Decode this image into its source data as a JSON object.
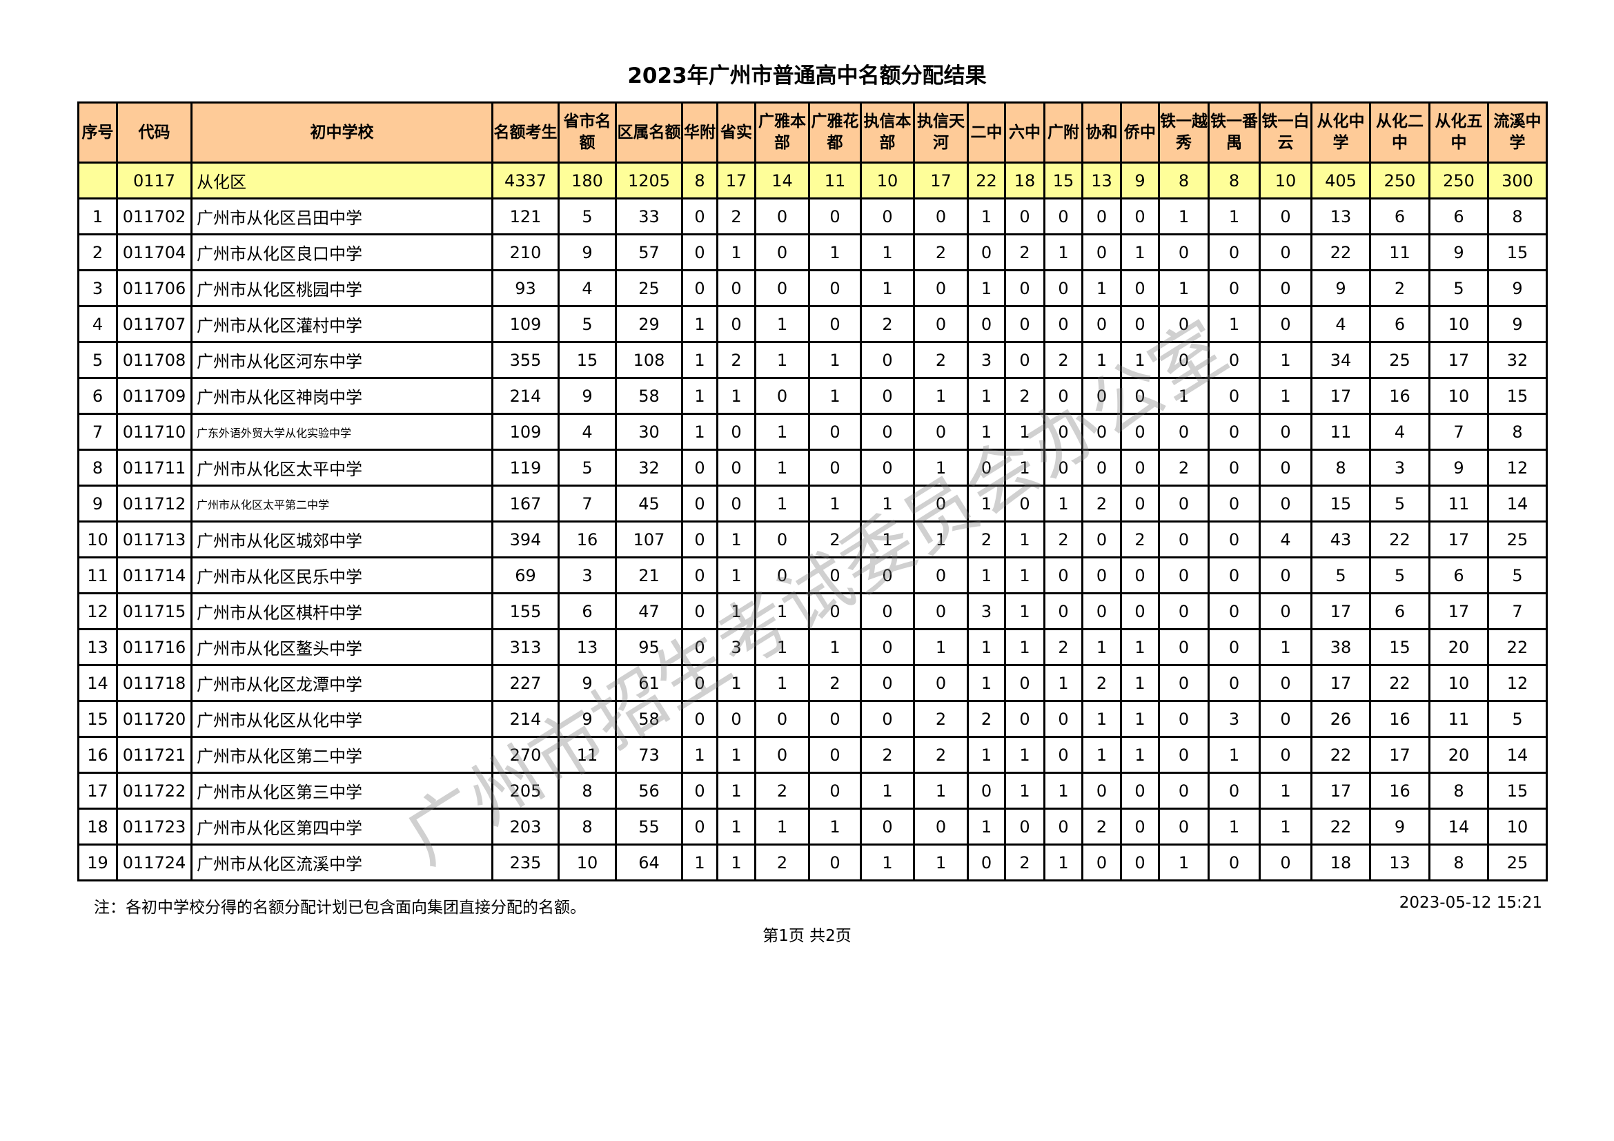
{
  "title": "2023年广州市普通高中名额分配结果",
  "columns": [
    "序号",
    "代码",
    "初中学校",
    "名额考生",
    "省市名额",
    "区属名额",
    "华附",
    "省实",
    "广雅本部",
    "广雅花都",
    "执信本部",
    "执信天河",
    "二中",
    "六中",
    "广附",
    "协和",
    "侨中",
    "铁一越秀",
    "铁一番禺",
    "铁一白云",
    "从化中学",
    "从化二中",
    "从化五中",
    "流溪中学"
  ],
  "region_row": [
    "",
    "0117",
    "从化区",
    "4337",
    "180",
    "1205",
    "8",
    "17",
    "14",
    "11",
    "10",
    "17",
    "22",
    "18",
    "15",
    "13",
    "9",
    "8",
    "8",
    "10",
    "405",
    "250",
    "250",
    "300"
  ],
  "rows": [
    [
      "1",
      "011702",
      "广州市从化区吕田中学",
      "121",
      "5",
      "33",
      "0",
      "2",
      "0",
      "0",
      "0",
      "0",
      "1",
      "0",
      "0",
      "0",
      "0",
      "1",
      "1",
      "0",
      "13",
      "6",
      "6",
      "8"
    ],
    [
      "2",
      "011704",
      "广州市从化区良口中学",
      "210",
      "9",
      "57",
      "0",
      "1",
      "0",
      "1",
      "1",
      "2",
      "0",
      "2",
      "1",
      "0",
      "1",
      "0",
      "0",
      "0",
      "22",
      "11",
      "9",
      "15"
    ],
    [
      "3",
      "011706",
      "广州市从化区桃园中学",
      "93",
      "4",
      "25",
      "0",
      "0",
      "0",
      "0",
      "1",
      "0",
      "1",
      "0",
      "0",
      "1",
      "0",
      "1",
      "0",
      "0",
      "9",
      "2",
      "5",
      "9"
    ],
    [
      "4",
      "011707",
      "广州市从化区灌村中学",
      "109",
      "5",
      "29",
      "1",
      "0",
      "1",
      "0",
      "2",
      "0",
      "0",
      "0",
      "0",
      "0",
      "0",
      "0",
      "1",
      "0",
      "4",
      "6",
      "10",
      "9"
    ],
    [
      "5",
      "011708",
      "广州市从化区河东中学",
      "355",
      "15",
      "108",
      "1",
      "2",
      "1",
      "1",
      "0",
      "2",
      "3",
      "0",
      "2",
      "1",
      "1",
      "0",
      "0",
      "1",
      "34",
      "25",
      "17",
      "32"
    ],
    [
      "6",
      "011709",
      "广州市从化区神岗中学",
      "214",
      "9",
      "58",
      "1",
      "1",
      "0",
      "1",
      "0",
      "1",
      "1",
      "2",
      "0",
      "0",
      "0",
      "1",
      "0",
      "1",
      "17",
      "16",
      "10",
      "15"
    ],
    [
      "7",
      "011710",
      "广东外语外贸大学从化实验中学",
      "109",
      "4",
      "30",
      "1",
      "0",
      "1",
      "0",
      "0",
      "0",
      "1",
      "1",
      "0",
      "0",
      "0",
      "0",
      "0",
      "0",
      "11",
      "4",
      "7",
      "8"
    ],
    [
      "8",
      "011711",
      "广州市从化区太平中学",
      "119",
      "5",
      "32",
      "0",
      "0",
      "1",
      "0",
      "0",
      "1",
      "0",
      "1",
      "0",
      "0",
      "0",
      "2",
      "0",
      "0",
      "8",
      "3",
      "9",
      "12"
    ],
    [
      "9",
      "011712",
      "广州市从化区太平第二中学",
      "167",
      "7",
      "45",
      "0",
      "0",
      "1",
      "1",
      "1",
      "0",
      "1",
      "0",
      "1",
      "2",
      "0",
      "0",
      "0",
      "0",
      "15",
      "5",
      "11",
      "14"
    ],
    [
      "10",
      "011713",
      "广州市从化区城郊中学",
      "394",
      "16",
      "107",
      "0",
      "1",
      "0",
      "2",
      "1",
      "1",
      "2",
      "1",
      "2",
      "0",
      "2",
      "0",
      "0",
      "4",
      "43",
      "22",
      "17",
      "25"
    ],
    [
      "11",
      "011714",
      "广州市从化区民乐中学",
      "69",
      "3",
      "21",
      "0",
      "1",
      "0",
      "0",
      "0",
      "0",
      "1",
      "1",
      "0",
      "0",
      "0",
      "0",
      "0",
      "0",
      "5",
      "5",
      "6",
      "5"
    ],
    [
      "12",
      "011715",
      "广州市从化区棋杆中学",
      "155",
      "6",
      "47",
      "0",
      "1",
      "1",
      "0",
      "0",
      "0",
      "3",
      "1",
      "0",
      "0",
      "0",
      "0",
      "0",
      "0",
      "17",
      "6",
      "17",
      "7"
    ],
    [
      "13",
      "011716",
      "广州市从化区鳌头中学",
      "313",
      "13",
      "95",
      "0",
      "3",
      "1",
      "1",
      "0",
      "1",
      "1",
      "1",
      "2",
      "1",
      "1",
      "0",
      "0",
      "1",
      "38",
      "15",
      "20",
      "22"
    ],
    [
      "14",
      "011718",
      "广州市从化区龙潭中学",
      "227",
      "9",
      "61",
      "0",
      "1",
      "1",
      "2",
      "0",
      "0",
      "1",
      "0",
      "1",
      "2",
      "1",
      "0",
      "0",
      "0",
      "17",
      "22",
      "10",
      "12"
    ],
    [
      "15",
      "011720",
      "广州市从化区从化中学",
      "214",
      "9",
      "58",
      "0",
      "0",
      "0",
      "0",
      "0",
      "2",
      "2",
      "0",
      "0",
      "1",
      "1",
      "0",
      "3",
      "0",
      "26",
      "16",
      "11",
      "5"
    ],
    [
      "16",
      "011721",
      "广州市从化区第二中学",
      "270",
      "11",
      "73",
      "1",
      "1",
      "0",
      "0",
      "2",
      "2",
      "1",
      "1",
      "0",
      "1",
      "1",
      "0",
      "1",
      "0",
      "22",
      "17",
      "20",
      "14"
    ],
    [
      "17",
      "011722",
      "广州市从化区第三中学",
      "205",
      "8",
      "56",
      "0",
      "1",
      "2",
      "0",
      "1",
      "1",
      "0",
      "1",
      "1",
      "0",
      "0",
      "0",
      "0",
      "1",
      "17",
      "16",
      "8",
      "15"
    ],
    [
      "18",
      "011723",
      "广州市从化区第四中学",
      "203",
      "8",
      "55",
      "0",
      "1",
      "1",
      "1",
      "0",
      "0",
      "1",
      "0",
      "0",
      "2",
      "0",
      "0",
      "1",
      "1",
      "22",
      "9",
      "14",
      "10"
    ],
    [
      "19",
      "011724",
      "广州市从化区流溪中学",
      "235",
      "10",
      "64",
      "1",
      "1",
      "2",
      "0",
      "1",
      "1",
      "0",
      "2",
      "1",
      "0",
      "0",
      "1",
      "0",
      "0",
      "18",
      "13",
      "8",
      "25"
    ]
  ],
  "small_font_rows": [
    "7",
    "9"
  ],
  "footer": {
    "note": "注：各初中学校分得的名额分配计划已包含面向集团直接分配的名额。",
    "timestamp": "2023-05-12 15:21",
    "page": "第1页 共2页"
  },
  "watermark": "广州市招生考试委员会办公室",
  "colors": {
    "header_bg": "#fecb98",
    "region_bg": "#fefe99",
    "watermark": "#9a9a9a"
  }
}
